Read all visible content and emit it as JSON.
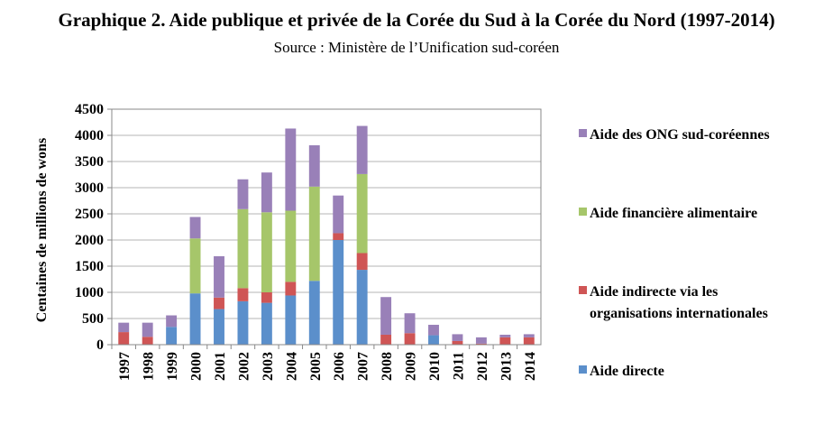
{
  "title": "Graphique 2. Aide publique et privée de la Corée du Sud à la Corée du Nord (1997-2014)",
  "subtitle": "Source : Ministère de l’Unification sud-coréen",
  "chart_data": {
    "type": "bar",
    "stacked": true,
    "categories": [
      "1997",
      "1998",
      "1999",
      "2000",
      "2001",
      "2002",
      "2003",
      "2004",
      "2005",
      "2006",
      "2007",
      "2008",
      "2009",
      "2010",
      "2011",
      "2012",
      "2013",
      "2014"
    ],
    "series": [
      {
        "name": "Aide directe",
        "color": "#5B8FCB",
        "values": [
          0,
          0,
          340,
          980,
          680,
          830,
          800,
          940,
          1220,
          2000,
          1430,
          0,
          0,
          180,
          0,
          0,
          0,
          0
        ]
      },
      {
        "name": "Aide indirecte via les organisations internationales",
        "color": "#CF5555",
        "values": [
          240,
          150,
          0,
          0,
          220,
          250,
          200,
          260,
          0,
          130,
          320,
          190,
          220,
          0,
          70,
          20,
          140,
          140
        ]
      },
      {
        "name": "Aide financière alimentaire",
        "color": "#A6C66A",
        "values": [
          0,
          0,
          0,
          1050,
          0,
          1510,
          1530,
          1360,
          1800,
          0,
          1510,
          0,
          0,
          0,
          0,
          0,
          0,
          0
        ]
      },
      {
        "name": "Aide des ONG sud-coréennes",
        "color": "#9980B8",
        "values": [
          180,
          270,
          220,
          410,
          790,
          570,
          760,
          1570,
          790,
          720,
          920,
          720,
          380,
          200,
          130,
          120,
          50,
          60
        ]
      }
    ],
    "ylabel": "Centaines de millions de wons",
    "xlabel": "",
    "ylim": [
      0,
      4500
    ],
    "yticks": [
      0,
      500,
      1000,
      1500,
      2000,
      2500,
      3000,
      3500,
      4000,
      4500
    ],
    "grid": true,
    "legend_position": "right",
    "legend_order": [
      3,
      2,
      1,
      0
    ]
  }
}
